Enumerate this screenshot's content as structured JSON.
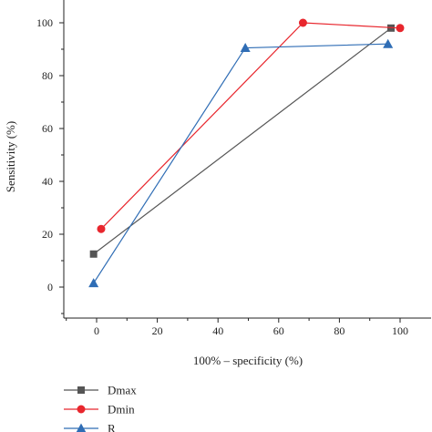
{
  "chart_data": {
    "type": "line",
    "title": "",
    "xlabel": "100% – specificity (%)",
    "ylabel": "Sensitivity (%)",
    "xlim": [
      -10,
      105
    ],
    "ylim": [
      -10,
      108
    ],
    "xticks": [
      0,
      20,
      40,
      60,
      80,
      100
    ],
    "yticks": [
      0,
      20,
      40,
      60,
      80,
      100
    ],
    "grid": false,
    "legend_position": "bottom-left",
    "series": [
      {
        "name": "Dmax",
        "marker": "square",
        "color": "#555555",
        "points": [
          [
            -1,
            12.5
          ],
          [
            97,
            98
          ]
        ]
      },
      {
        "name": "Dmin",
        "marker": "circle",
        "color": "#e8262d",
        "points": [
          [
            1.5,
            22
          ],
          [
            68,
            100
          ],
          [
            100,
            98
          ]
        ]
      },
      {
        "name": "R",
        "marker": "triangle",
        "color": "#2f6db5",
        "points": [
          [
            -1,
            1.5
          ],
          [
            49,
            90.5
          ],
          [
            96,
            92
          ]
        ]
      }
    ]
  }
}
